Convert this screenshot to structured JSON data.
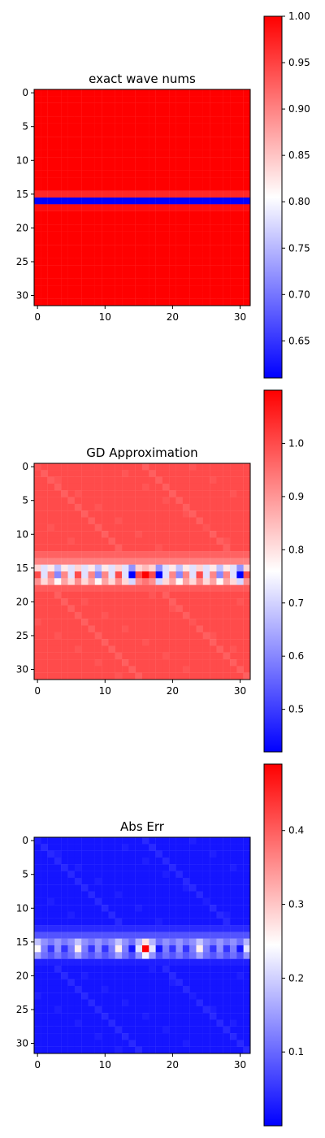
{
  "chart_data": [
    {
      "type": "heatmap",
      "title": "exact wave nums",
      "grid": false,
      "colormap": "bwr",
      "xlim": [
        -0.5,
        31.5
      ],
      "ylim": [
        31.5,
        -0.5
      ],
      "xticks": [
        0,
        10,
        20,
        30
      ],
      "yticks": [
        0,
        5,
        10,
        15,
        20,
        25,
        30
      ],
      "vmin": 0.61,
      "vmax": 1.0,
      "colorbar_ticks": [
        "1.00",
        "0.95",
        "0.90",
        "0.85",
        "0.80",
        "0.75",
        "0.70",
        "0.65"
      ],
      "colorbar_tick_values": [
        1.0,
        0.95,
        0.9,
        0.85,
        0.8,
        0.75,
        0.7,
        0.65
      ],
      "row_values": [
        1,
        1,
        1,
        1,
        1,
        1,
        1,
        1,
        1,
        1,
        1,
        1,
        1,
        1,
        1,
        0.97,
        0.61,
        0.99,
        1,
        1,
        1,
        1,
        1,
        1,
        1,
        1,
        1,
        1,
        1,
        1,
        1,
        1
      ]
    },
    {
      "type": "heatmap",
      "title": "GD Approximation",
      "grid": false,
      "colormap": "bwr",
      "xlim": [
        -0.5,
        31.5
      ],
      "ylim": [
        31.5,
        -0.5
      ],
      "xticks": [
        0,
        10,
        20,
        30
      ],
      "yticks": [
        0,
        5,
        10,
        15,
        20,
        25,
        30
      ],
      "vmin": 0.42,
      "vmax": 1.1,
      "colorbar_ticks": [
        "1.0",
        "0.9",
        "0.8",
        "0.7",
        "0.6",
        "0.5"
      ],
      "colorbar_tick_values": [
        1.0,
        0.9,
        0.8,
        0.7,
        0.6,
        0.5
      ],
      "background_value": 1.0,
      "row_values": {
        "13": 0.97,
        "14": 0.93,
        "15": 0.72,
        "16": 0.55,
        "17": 0.86,
        "18": 0.98
      },
      "column_pattern": [
        1.0,
        0.72,
        0.92,
        0.6,
        0.92,
        0.72,
        1.0,
        0.72,
        0.92,
        0.6,
        0.92,
        0.72,
        1.0,
        0.72,
        0.42,
        1.0,
        1.1,
        1.0,
        0.42,
        0.72,
        0.92,
        0.6,
        0.92,
        0.72,
        1.0,
        0.72,
        0.92,
        0.6,
        0.92,
        0.72,
        0.42,
        1.0
      ]
    },
    {
      "type": "heatmap",
      "title": "Abs Err",
      "grid": false,
      "colormap": "bwr",
      "xlim": [
        -0.5,
        31.5
      ],
      "ylim": [
        31.5,
        -0.5
      ],
      "xticks": [
        0,
        10,
        20,
        30
      ],
      "yticks": [
        0,
        5,
        10,
        15,
        20,
        25,
        30
      ],
      "vmin": 0.0,
      "vmax": 0.49,
      "colorbar_ticks": [
        "0.4",
        "0.3",
        "0.2",
        "0.1"
      ],
      "colorbar_tick_values": [
        0.4,
        0.3,
        0.2,
        0.1
      ],
      "background_value": 0.02,
      "row_values": {
        "13": 0.04,
        "14": 0.08,
        "15": 0.15,
        "16": 0.3,
        "17": 0.1,
        "18": 0.03
      },
      "column_pattern": [
        0.25,
        0.12,
        0.05,
        0.14,
        0.05,
        0.12,
        0.26,
        0.12,
        0.05,
        0.14,
        0.05,
        0.12,
        0.26,
        0.12,
        0.02,
        0.22,
        0.49,
        0.22,
        0.02,
        0.12,
        0.05,
        0.14,
        0.05,
        0.12,
        0.26,
        0.12,
        0.05,
        0.14,
        0.05,
        0.12,
        0.02,
        0.22
      ]
    }
  ]
}
